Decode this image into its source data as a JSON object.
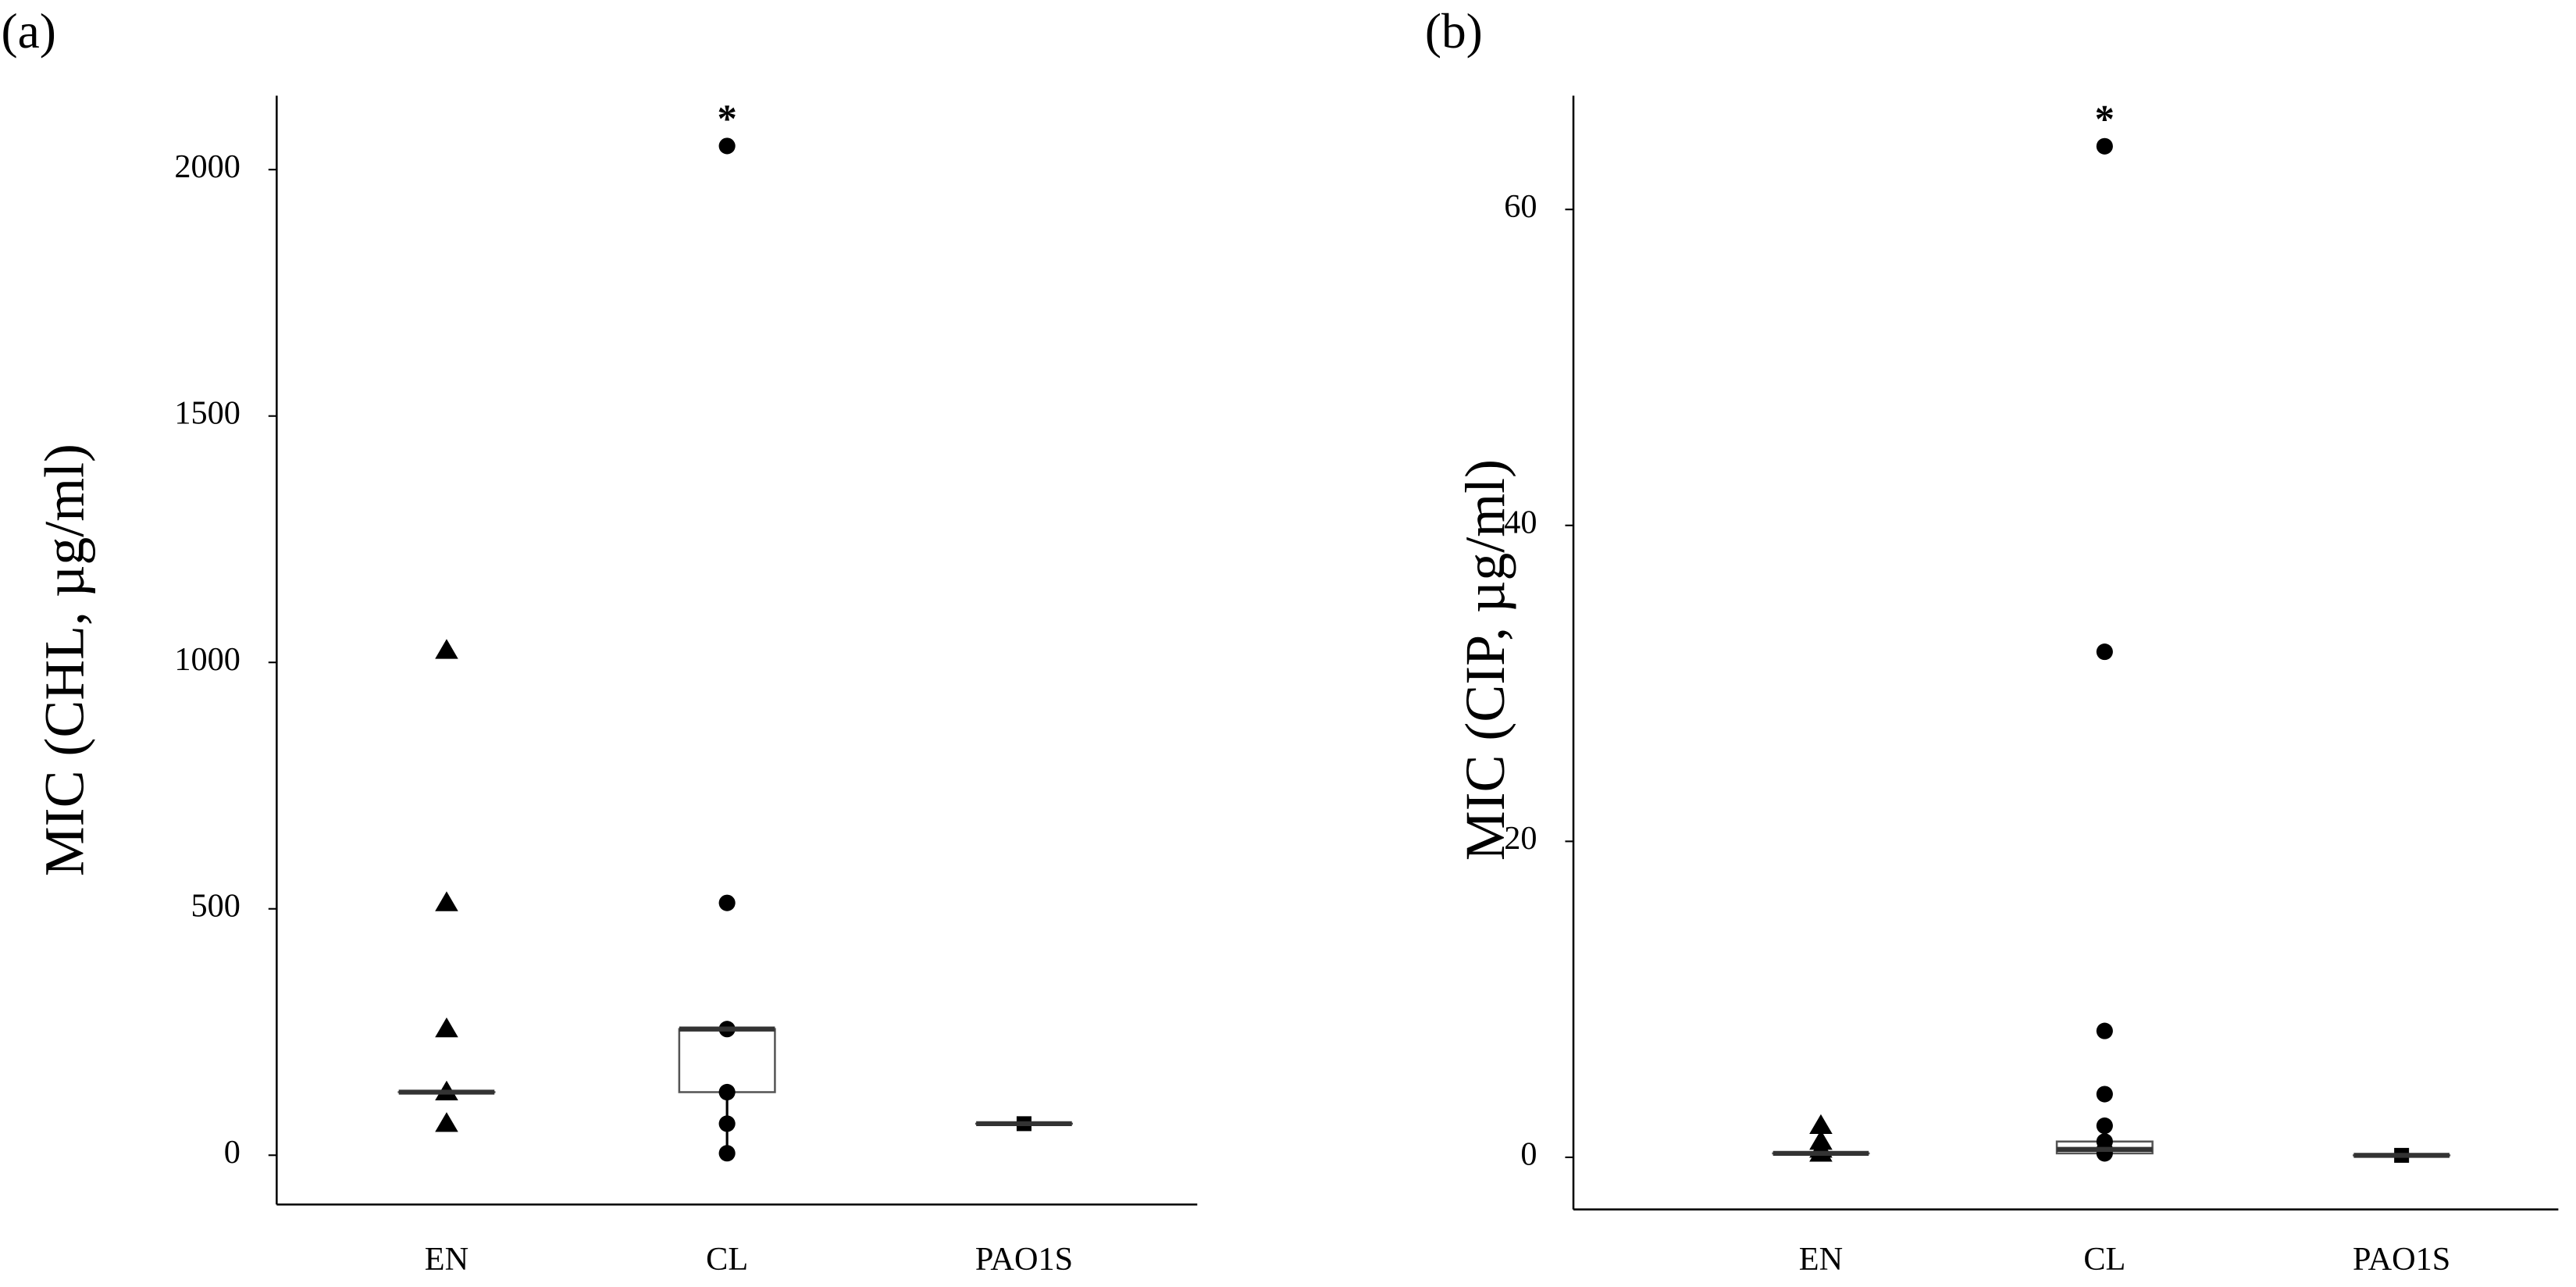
{
  "chart_data": [
    {
      "type": "box",
      "panel_label": "(a)",
      "y_label": "MIC (CHL, µg/ml)",
      "categories": [
        "EN",
        "CL",
        "PAO1S"
      ],
      "ylim": [
        -100,
        2150
      ],
      "yticks": [
        0,
        500,
        1000,
        1500,
        2000
      ],
      "groups": [
        {
          "marker": "triangle",
          "points": [
            1024,
            512,
            256,
            128,
            64
          ],
          "q1": 128,
          "median": 128,
          "q3": 128
        },
        {
          "marker": "circle",
          "points": [
            2048,
            512,
            256,
            128,
            64,
            4
          ],
          "q1": 128,
          "median": 256,
          "q3": 256,
          "whisker_low": 4
        },
        {
          "marker": "square",
          "points": [
            64
          ],
          "q1": 64,
          "median": 64,
          "q3": 64
        }
      ],
      "annotations": [
        {
          "text": "*",
          "category_index": 1,
          "value": 2048
        }
      ]
    },
    {
      "type": "box",
      "panel_label": "(b)",
      "y_label": "MIC (CIP, µg/ml)",
      "categories": [
        "EN",
        "CL",
        "PAO1S"
      ],
      "ylim": [
        -3.3,
        67.2
      ],
      "yticks": [
        0,
        20,
        40,
        60
      ],
      "groups": [
        {
          "marker": "triangle",
          "points": [
            2,
            1,
            0.5,
            0.25
          ],
          "q1": 0.25,
          "median": 0.25,
          "q3": 0.25
        },
        {
          "marker": "circle",
          "points": [
            64,
            32,
            8,
            4,
            2,
            1,
            0.5,
            0.25
          ],
          "q1": 0.25,
          "median": 0.5,
          "q3": 1
        },
        {
          "marker": "square",
          "points": [
            0.125
          ],
          "q1": 0.125,
          "median": 0.125,
          "q3": 0.125
        }
      ],
      "annotations": [
        {
          "text": "*",
          "category_index": 1,
          "value": 64
        }
      ]
    }
  ]
}
